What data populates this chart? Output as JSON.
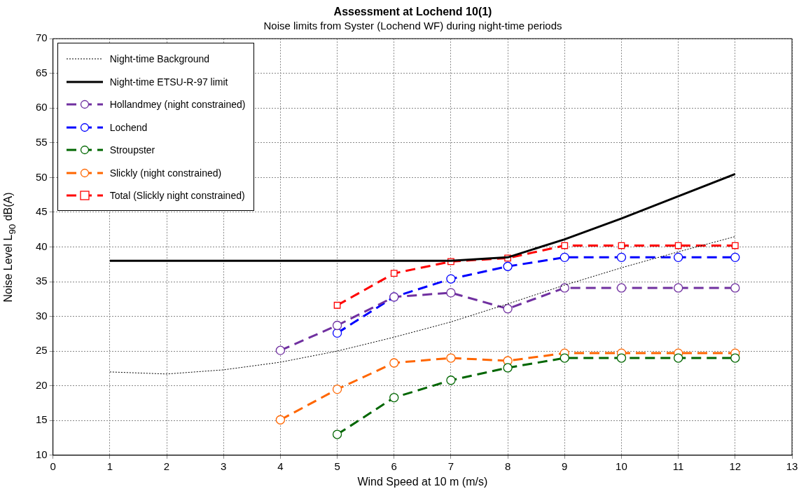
{
  "chart_data": {
    "type": "line",
    "title": "Assessment at Lochend 10(1)",
    "subtitle": "Noise limits from Syster (Lochend WF) during night-time periods",
    "xlabel": "Wind Speed at 10 m (m/s)",
    "ylabel": "Noise Level L$_{90}$ dB(A)",
    "xlim": [
      0,
      13
    ],
    "xticks": [
      0,
      1,
      2,
      3,
      4,
      5,
      6,
      7,
      8,
      9,
      10,
      11,
      12,
      13
    ],
    "ylim": [
      10,
      70
    ],
    "yticks": [
      10,
      15,
      20,
      25,
      30,
      35,
      40,
      45,
      50,
      55,
      60,
      65,
      70
    ],
    "grid": true,
    "legend": "top left",
    "series": [
      {
        "name": "Night-time Background",
        "color": "#000000",
        "line_style": "dotted",
        "marker": "none",
        "x": [
          1,
          2,
          3,
          4,
          5,
          6,
          7,
          8,
          9,
          10,
          11,
          12
        ],
        "values": [
          22.0,
          21.7,
          22.3,
          23.4,
          25.0,
          27.0,
          29.2,
          31.8,
          34.5,
          37.0,
          39.3,
          41.5
        ]
      },
      {
        "name": "Night-time ETSU-R-97 limit",
        "color": "#000000",
        "line_style": "solid",
        "marker": "none",
        "x": [
          1,
          2,
          3,
          4,
          5,
          6,
          7,
          8,
          9,
          10,
          11,
          12
        ],
        "values": [
          38,
          38,
          38,
          38,
          38,
          38,
          38,
          38.5,
          41.1,
          44.1,
          47.3,
          50.5
        ]
      },
      {
        "name": "Hollandmey (night constrained)",
        "color": "#7030a0",
        "line_style": "dashed",
        "marker": "circle",
        "x": [
          4,
          5,
          6,
          7,
          8,
          9,
          10,
          11,
          12
        ],
        "values": [
          25.1,
          28.7,
          32.8,
          33.4,
          31.1,
          34.1,
          34.1,
          34.1,
          34.1
        ]
      },
      {
        "name": "Lochend",
        "color": "#0000ff",
        "line_style": "dashed",
        "marker": "circle",
        "x": [
          5,
          6,
          7,
          8,
          9,
          10,
          11,
          12
        ],
        "values": [
          27.6,
          32.8,
          35.4,
          37.2,
          38.5,
          38.5,
          38.5,
          38.5
        ]
      },
      {
        "name": "Stroupster",
        "color": "#006600",
        "line_style": "dashed",
        "marker": "circle",
        "x": [
          5,
          6,
          7,
          8,
          9,
          10,
          11,
          12
        ],
        "values": [
          13.0,
          18.3,
          20.8,
          22.6,
          24.0,
          24.0,
          24.0,
          24.0
        ]
      },
      {
        "name": "Slickly (night constrained)",
        "color": "#ff6600",
        "line_style": "dashed",
        "marker": "circle",
        "x": [
          4,
          5,
          6,
          7,
          8,
          9,
          10,
          11,
          12
        ],
        "values": [
          15.1,
          19.5,
          23.3,
          24.0,
          23.6,
          24.7,
          24.7,
          24.7,
          24.7
        ]
      },
      {
        "name": "Total (Slickly night constrained)",
        "color": "#ff0000",
        "line_style": "dashed",
        "marker": "square",
        "x": [
          5,
          6,
          7,
          8,
          9,
          10,
          11,
          12
        ],
        "values": [
          31.6,
          36.2,
          37.9,
          38.4,
          40.2,
          40.2,
          40.2,
          40.2
        ]
      }
    ]
  }
}
